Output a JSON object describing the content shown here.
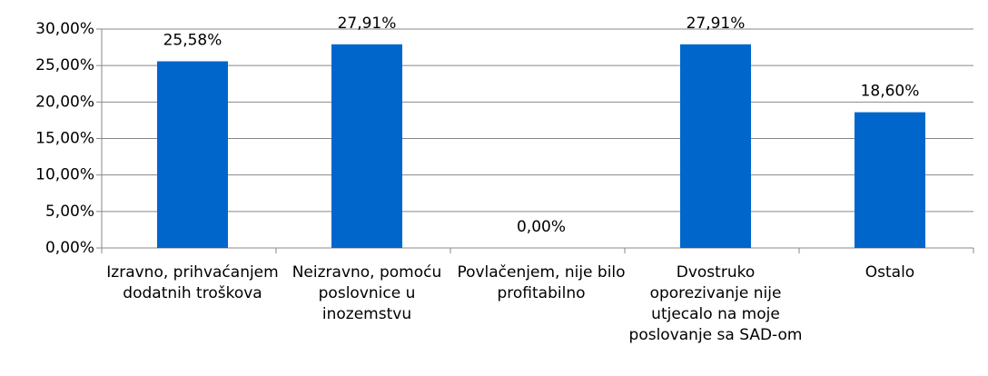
{
  "chart_data": {
    "type": "bar",
    "categories": [
      "Izravno, prihvaćanjem dodatnih troškova",
      "Neizravno, pomoću poslovnice u inozemstvu",
      "Povlačenjem, nije bilo profitabilno",
      "Dvostruko oporezivanje nije utjecalo na moje poslovanje sa SAD-om",
      "Ostalo"
    ],
    "values": [
      25.58,
      27.91,
      0,
      27.91,
      18.6
    ],
    "value_labels": [
      "25,58%",
      "27,91%",
      "0,00%",
      "27,91%",
      "18,60%"
    ],
    "color": "#0066cc",
    "ylim": [
      0,
      30
    ],
    "yticks": [
      {
        "value": 0,
        "label": "0,00%"
      },
      {
        "value": 5,
        "label": "5,00%"
      },
      {
        "value": 10,
        "label": "10,00%"
      },
      {
        "value": 15,
        "label": "15,00%"
      },
      {
        "value": 20,
        "label": "20,00%"
      },
      {
        "value": 25,
        "label": "25,00%"
      },
      {
        "value": 30,
        "label": "30,00%"
      }
    ],
    "grid": true
  }
}
